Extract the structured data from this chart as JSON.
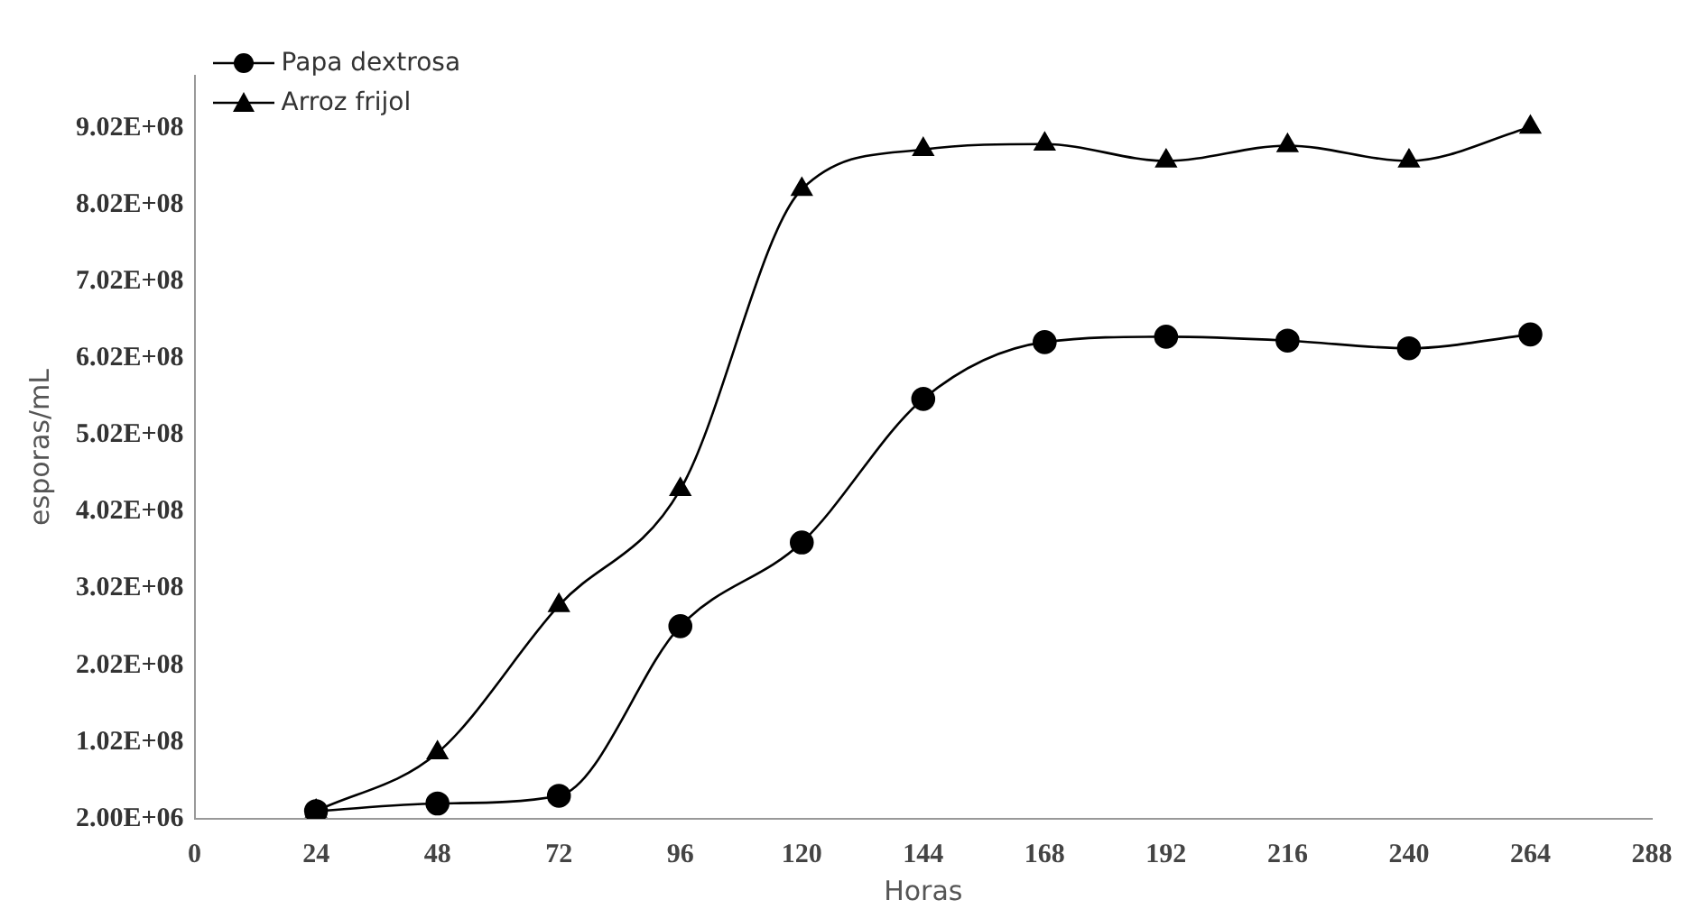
{
  "chart_data": {
    "type": "line",
    "xlabel": "Horas",
    "ylabel": "esporas/mL",
    "x": [
      24,
      48,
      72,
      96,
      120,
      144,
      168,
      192,
      216,
      240,
      264
    ],
    "series": [
      {
        "name": "Papa dextrosa",
        "color": "#000000",
        "marker": "circle",
        "values": [
          12000000.0,
          22000000.0,
          32000000.0,
          253000000.0,
          362000000.0,
          549000000.0,
          623000000.0,
          630000000.0,
          625000000.0,
          615000000.0,
          633000000.0
        ]
      },
      {
        "name": "Arroz frijol",
        "color": "#000000",
        "marker": "triangle",
        "values": [
          12000000.0,
          88000000.0,
          280000000.0,
          431000000.0,
          822000000.0,
          874000000.0,
          881000000.0,
          859000000.0,
          879000000.0,
          859000000.0,
          903000000.0
        ]
      }
    ],
    "xlim": [
      0,
      288
    ],
    "xticks": [
      0,
      24,
      48,
      72,
      96,
      120,
      144,
      168,
      192,
      216,
      240,
      264,
      288
    ],
    "ylim": [
      2000000.0,
      970000000.0
    ],
    "yticks": [
      {
        "value": 2000000.0,
        "label": "2.00E+06"
      },
      {
        "value": 102000000.0,
        "label": "1.02E+08"
      },
      {
        "value": 202000000.0,
        "label": "2.02E+08"
      },
      {
        "value": 302000000.0,
        "label": "3.02E+08"
      },
      {
        "value": 402000000.0,
        "label": "4.02E+08"
      },
      {
        "value": 502000000.0,
        "label": "5.02E+08"
      },
      {
        "value": 602000000.0,
        "label": "6.02E+08"
      },
      {
        "value": 702000000.0,
        "label": "7.02E+08"
      },
      {
        "value": 802000000.0,
        "label": "8.02E+08"
      },
      {
        "value": 902000000.0,
        "label": "9.02E+08"
      }
    ],
    "grid": false,
    "legend": "top left",
    "line_style": "solid"
  }
}
